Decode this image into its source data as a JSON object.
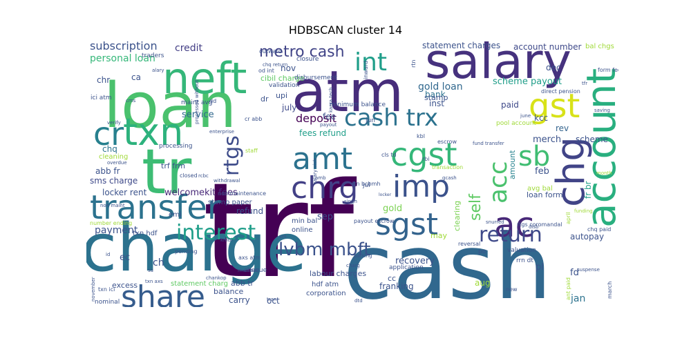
{
  "chart_data": {
    "type": "wordcloud",
    "title": "HDBSCAN cluster 14",
    "words": [
      {
        "text": "trf",
        "color": "#440154"
      },
      {
        "text": "cash",
        "color": "#31688e"
      },
      {
        "text": "charge",
        "color": "#2c728e"
      },
      {
        "text": "loan",
        "color": "#4ac16d"
      },
      {
        "text": "atm",
        "color": "#472d7b"
      },
      {
        "text": "salary",
        "color": "#46327e"
      },
      {
        "text": "neft",
        "color": "#35b779"
      },
      {
        "text": "tr",
        "color": "#3dbc74"
      },
      {
        "text": "account",
        "color": "#29af7f"
      },
      {
        "text": "txn",
        "color": "#2db27d"
      },
      {
        "text": "transfer",
        "color": "#2c728e"
      },
      {
        "text": "chg",
        "color": "#414487"
      },
      {
        "text": "gst",
        "color": "#d8e219"
      },
      {
        "text": "cr",
        "color": "#27808e"
      },
      {
        "text": "share",
        "color": "#365c8d"
      },
      {
        "text": "cgst",
        "color": "#35b779"
      },
      {
        "text": "amt",
        "color": "#2c728e"
      },
      {
        "text": "imp",
        "color": "#3b528b"
      },
      {
        "text": "sgst",
        "color": "#33638d"
      },
      {
        "text": "ac",
        "color": "#482878"
      },
      {
        "text": "chrg",
        "color": "#424086"
      },
      {
        "text": "int",
        "color": "#1f9e89"
      },
      {
        "text": "cash trx",
        "color": "#2c728e"
      },
      {
        "text": "sb",
        "color": "#40bd72"
      },
      {
        "text": "acc",
        "color": "#4ac16d"
      },
      {
        "text": "interest",
        "color": "#1f9e89"
      },
      {
        "text": "return",
        "color": "#3e4989"
      },
      {
        "text": "lvbm mbft",
        "color": "#3b528b"
      },
      {
        "text": "metro cash",
        "color": "#414487"
      },
      {
        "text": "rtgs",
        "color": "#3e4c8a"
      },
      {
        "text": "self",
        "color": "#5ec962"
      },
      {
        "text": "deposit",
        "color": "#440154"
      },
      {
        "text": "subscription",
        "color": "#3b528b"
      },
      {
        "text": "credit",
        "color": "#433e85"
      },
      {
        "text": "personal loan",
        "color": "#35b779"
      },
      {
        "text": "gold loan",
        "color": "#31688e"
      },
      {
        "text": "statement charges",
        "color": "#3b528b"
      },
      {
        "text": "account number",
        "color": "#3e4989"
      },
      {
        "text": "bal chgs",
        "color": "#a0da39"
      },
      {
        "text": "scheme payout",
        "color": "#1f9e89"
      },
      {
        "text": "dec",
        "color": "#3b528b"
      },
      {
        "text": "merch",
        "color": "#3b528b"
      },
      {
        "text": "scheme",
        "color": "#3b528b"
      },
      {
        "text": "kcc",
        "color": "#3b528b"
      },
      {
        "text": "rev",
        "color": "#33638d"
      },
      {
        "text": "nov",
        "color": "#3b528b"
      },
      {
        "text": "paid",
        "color": "#3e4989"
      },
      {
        "text": "bank",
        "color": "#2c728e"
      },
      {
        "text": "inst",
        "color": "#3b528b"
      },
      {
        "text": "chq",
        "color": "#2c728e"
      },
      {
        "text": "service",
        "color": "#31688e"
      },
      {
        "text": "ca",
        "color": "#3b528b"
      },
      {
        "text": "chr",
        "color": "#3b528b"
      },
      {
        "text": "upi",
        "color": "#3b528b"
      },
      {
        "text": "dr",
        "color": "#3b528b"
      },
      {
        "text": "july",
        "color": "#3e4989"
      },
      {
        "text": "fee",
        "color": "#3b528b"
      },
      {
        "text": "fees refund",
        "color": "#1f9e89"
      },
      {
        "text": "abb fr",
        "color": "#3b528b"
      },
      {
        "text": "sms charge",
        "color": "#3e4989"
      },
      {
        "text": "trf frm",
        "color": "#3b528b"
      },
      {
        "text": "locker rent",
        "color": "#3b528b"
      },
      {
        "text": "welcomekit fees",
        "color": "#482878"
      },
      {
        "text": "refund",
        "color": "#3b528b"
      },
      {
        "text": "feb",
        "color": "#3b528b"
      },
      {
        "text": "amount",
        "color": "#26828e"
      },
      {
        "text": "payment",
        "color": "#3b528b"
      },
      {
        "text": "sep",
        "color": "#3b528b"
      },
      {
        "text": "gold",
        "color": "#7ad151"
      },
      {
        "text": "clearing",
        "color": "#7ad151"
      },
      {
        "text": "loan form",
        "color": "#3b528b"
      },
      {
        "text": "avg bal",
        "color": "#a0da39"
      },
      {
        "text": "fr br",
        "color": "#1f9e89"
      },
      {
        "text": "autopay",
        "color": "#3b528b"
      },
      {
        "text": "recovery",
        "color": "#3b528b"
      },
      {
        "text": "may",
        "color": "#a0da39"
      },
      {
        "text": "ec",
        "color": "#3b528b"
      },
      {
        "text": "ch",
        "color": "#3b528b"
      },
      {
        "text": "aug",
        "color": "#a0da39"
      },
      {
        "text": "franking",
        "color": "#3b528b"
      },
      {
        "text": "cc",
        "color": "#3b528b"
      },
      {
        "text": "pl",
        "color": "#3b528b"
      },
      {
        "text": "fd",
        "color": "#3b528b"
      },
      {
        "text": "jan",
        "color": "#2c728e"
      },
      {
        "text": "carry",
        "color": "#3b528b"
      },
      {
        "text": "oct",
        "color": "#3b528b"
      },
      {
        "text": "balance",
        "color": "#3b528b"
      },
      {
        "text": "labour charges",
        "color": "#3b528b"
      },
      {
        "text": "hdf atm",
        "color": "#3b528b"
      },
      {
        "text": "corporation",
        "color": "#3b528b"
      },
      {
        "text": "abb tr",
        "color": "#3b528b"
      },
      {
        "text": "excess",
        "color": "#3b528b"
      },
      {
        "text": "statement charg",
        "color": "#5ec962"
      },
      {
        "text": "cibil charge",
        "color": "#5ec962"
      },
      {
        "text": "minimum balance",
        "color": "#3b528b"
      },
      {
        "text": "stamp paper",
        "color": "#3b528b"
      },
      {
        "text": "min bal",
        "color": "#3b528b"
      },
      {
        "text": "online",
        "color": "#3b528b"
      },
      {
        "text": "txn hdf",
        "color": "#3b528b"
      },
      {
        "text": "emi",
        "color": "#3b528b"
      },
      {
        "text": "processing",
        "color": "#3b528b"
      },
      {
        "text": "cleaning",
        "color": "#a0da39"
      },
      {
        "text": "disbursement",
        "color": "#3b528b"
      },
      {
        "text": "validation",
        "color": "#3b528b"
      },
      {
        "text": "maint avg",
        "color": "#3b528b"
      },
      {
        "text": "closure",
        "color": "#3b528b"
      },
      {
        "text": "stamp",
        "color": "#3b528b"
      },
      {
        "text": "pool account",
        "color": "#a0da39"
      },
      {
        "text": "direct pension",
        "color": "#3b528b"
      },
      {
        "text": "form fee",
        "color": "#3b528b"
      },
      {
        "text": "saving",
        "color": "#3b528b"
      },
      {
        "text": "escrow",
        "color": "#3b528b"
      },
      {
        "text": "fund transfer",
        "color": "#3b528b"
      },
      {
        "text": "transaction",
        "color": "#a0da39"
      },
      {
        "text": "payout escrow",
        "color": "#3b528b"
      },
      {
        "text": "rtgs coromandal",
        "color": "#3b528b"
      },
      {
        "text": "chq paid",
        "color": "#3b528b"
      },
      {
        "text": "reversal",
        "color": "#3b528b"
      },
      {
        "text": "application",
        "color": "#3b528b"
      },
      {
        "text": "rrn dt",
        "color": "#3b528b"
      },
      {
        "text": "valuation",
        "color": "#3b528b"
      },
      {
        "text": "po",
        "color": "#3b528b"
      },
      {
        "text": "suspense",
        "color": "#3b528b"
      },
      {
        "text": "march",
        "color": "#3b528b"
      },
      {
        "text": "april",
        "color": "#a0da39"
      },
      {
        "text": "month",
        "color": "#a0da39"
      },
      {
        "text": "funding",
        "color": "#a0da39"
      },
      {
        "text": "new",
        "color": "#3b528b"
      },
      {
        "text": "ant paid",
        "color": "#a0da39"
      },
      {
        "text": "november",
        "color": "#3b528b"
      },
      {
        "text": "nominal",
        "color": "#3b528b"
      },
      {
        "text": "cheque",
        "color": "#3b528b"
      },
      {
        "text": "pending",
        "color": "#3b528b"
      },
      {
        "text": "withdrawal",
        "color": "#3b528b"
      },
      {
        "text": "non maintenance",
        "color": "#3b528b"
      },
      {
        "text": "closed",
        "color": "#3b528b"
      },
      {
        "text": "overdue",
        "color": "#3b528b"
      },
      {
        "text": "enterprise",
        "color": "#3b528b"
      },
      {
        "text": "staff",
        "color": "#a0da39"
      },
      {
        "text": "traders",
        "color": "#3b528b"
      },
      {
        "text": "outward",
        "color": "#3b528b"
      },
      {
        "text": "chq return",
        "color": "#3b528b"
      },
      {
        "text": "od int",
        "color": "#3b528b"
      },
      {
        "text": "inward",
        "color": "#3b528b"
      },
      {
        "text": "karza tech",
        "color": "#3b528b"
      },
      {
        "text": "jun",
        "color": "#3b528b"
      },
      {
        "text": "payout",
        "color": "#3b528b"
      },
      {
        "text": "kbl",
        "color": "#3b528b"
      },
      {
        "text": "cls td",
        "color": "#3b528b"
      },
      {
        "text": "rbi",
        "color": "#3b528b"
      },
      {
        "text": "gcash",
        "color": "#3b528b"
      },
      {
        "text": "singh",
        "color": "#3b528b"
      },
      {
        "text": "jul",
        "color": "#3b528b"
      },
      {
        "text": "amb",
        "color": "#3b528b"
      },
      {
        "text": "mumbai",
        "color": "#3b528b"
      },
      {
        "text": "number ending",
        "color": "#a0da39"
      },
      {
        "text": "snurred",
        "color": "#3b528b"
      },
      {
        "text": "rcbc",
        "color": "#3b528b"
      },
      {
        "text": "cr abb",
        "color": "#3b528b"
      },
      {
        "text": "ici atm",
        "color": "#3b528b"
      },
      {
        "text": "cms",
        "color": "#3b528b"
      },
      {
        "text": "txn axs",
        "color": "#3b528b"
      },
      {
        "text": "txn ici",
        "color": "#3b528b"
      },
      {
        "text": "sa",
        "color": "#3b528b"
      },
      {
        "text": "id",
        "color": "#3b528b"
      },
      {
        "text": "kmbl",
        "color": "#3b528b"
      },
      {
        "text": "june",
        "color": "#3b528b"
      },
      {
        "text": "tfr",
        "color": "#3b528b"
      },
      {
        "text": "disb",
        "color": "#3b528b"
      },
      {
        "text": "dtd",
        "color": "#3b528b"
      },
      {
        "text": "tran",
        "color": "#3b528b"
      },
      {
        "text": "parking",
        "color": "#3b528b"
      },
      {
        "text": "sm",
        "color": "#3b528b"
      },
      {
        "text": "rtn",
        "color": "#3b528b"
      },
      {
        "text": "rtn bcbmh",
        "color": "#3b528b"
      },
      {
        "text": "charg",
        "color": "#3b528b"
      },
      {
        "text": "chankop",
        "color": "#3b528b"
      },
      {
        "text": "dd",
        "color": "#3b528b"
      },
      {
        "text": "axs atm",
        "color": "#3b528b"
      },
      {
        "text": "verify",
        "color": "#3b528b"
      },
      {
        "text": "alary",
        "color": "#3b528b"
      },
      {
        "text": "processed without",
        "color": "#3b528b"
      },
      {
        "text": "locker",
        "color": "#3b528b"
      },
      {
        "text": "non maint",
        "color": "#3b528b"
      },
      {
        "text": "salary vish",
        "color": "#3b528b"
      }
    ]
  }
}
